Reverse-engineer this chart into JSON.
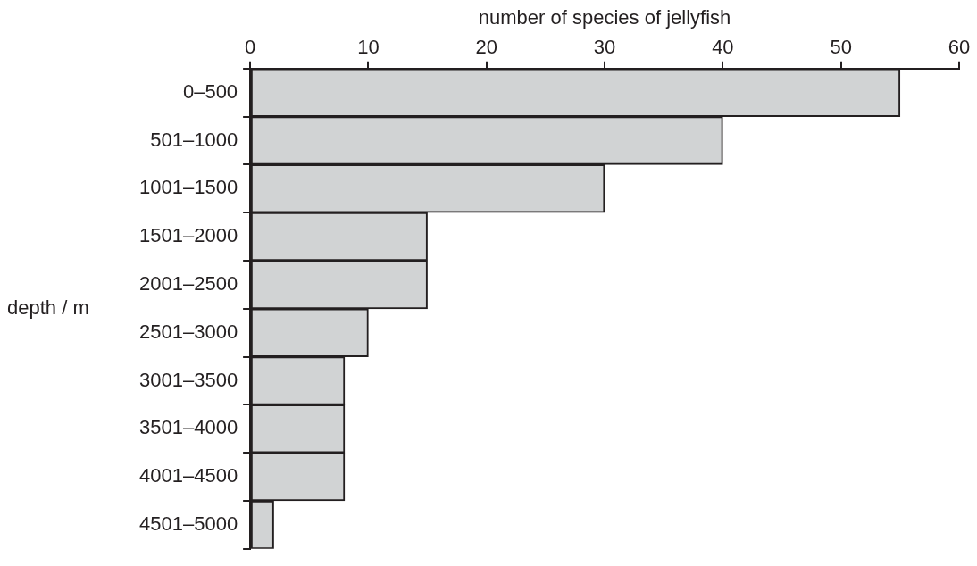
{
  "chart_data": {
    "type": "bar",
    "orientation": "horizontal",
    "xlabel": "number of species of jellyfish",
    "ylabel": "depth / m",
    "categories": [
      "0–500",
      "501–1000",
      "1001–1500",
      "1501–2000",
      "2001–2500",
      "2501–3000",
      "3001–3500",
      "3501–4000",
      "4001–4500",
      "4501–5000"
    ],
    "values": [
      55,
      40,
      30,
      15,
      15,
      10,
      8,
      8,
      8,
      2
    ],
    "color": "#d1d3d4",
    "xlim": [
      0,
      60
    ],
    "xticks": [
      0,
      10,
      20,
      30,
      40,
      50,
      60
    ],
    "grid": false,
    "legend": false
  }
}
